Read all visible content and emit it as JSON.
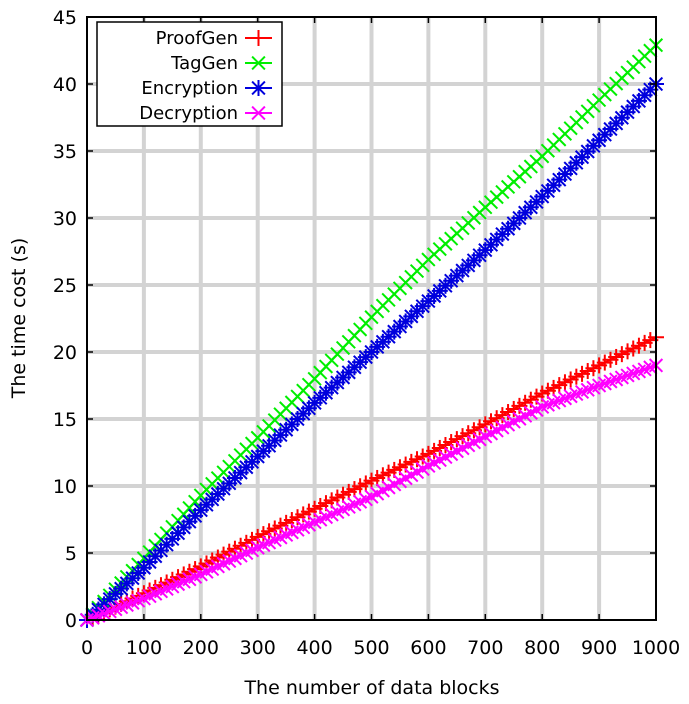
{
  "chart_data": {
    "type": "line",
    "title": "",
    "xlabel": "The number of data blocks",
    "ylabel": "The time cost (s)",
    "xlim": [
      0,
      1000
    ],
    "ylim": [
      0,
      45
    ],
    "xticks": [
      0,
      100,
      200,
      300,
      400,
      500,
      600,
      700,
      800,
      900,
      1000
    ],
    "yticks": [
      0,
      5,
      10,
      15,
      20,
      25,
      30,
      35,
      40,
      45
    ],
    "grid": true,
    "legend_position": "top-left",
    "x": [
      0,
      100,
      200,
      300,
      400,
      500,
      600,
      700,
      800,
      900,
      1000
    ],
    "series": [
      {
        "name": "ProofGen",
        "color": "#ff0000",
        "marker": "plus",
        "values": [
          0,
          2.0,
          4.0,
          6.2,
          8.3,
          10.4,
          12.4,
          14.6,
          16.9,
          19.0,
          21.1
        ]
      },
      {
        "name": "TagGen",
        "color": "#00ee00",
        "marker": "x",
        "values": [
          0,
          4.6,
          9.3,
          13.6,
          18.0,
          22.6,
          26.9,
          30.8,
          34.6,
          38.8,
          42.9
        ]
      },
      {
        "name": "Encryption",
        "color": "#0000dd",
        "marker": "star",
        "values": [
          0,
          3.9,
          8.2,
          12.2,
          16.2,
          20.0,
          23.8,
          27.6,
          31.6,
          35.8,
          40.0
        ]
      },
      {
        "name": "Decryption",
        "color": "#ff00ff",
        "marker": "x",
        "values": [
          0,
          1.6,
          3.4,
          5.4,
          7.3,
          9.2,
          11.5,
          13.7,
          15.9,
          17.5,
          19.0
        ]
      }
    ]
  }
}
